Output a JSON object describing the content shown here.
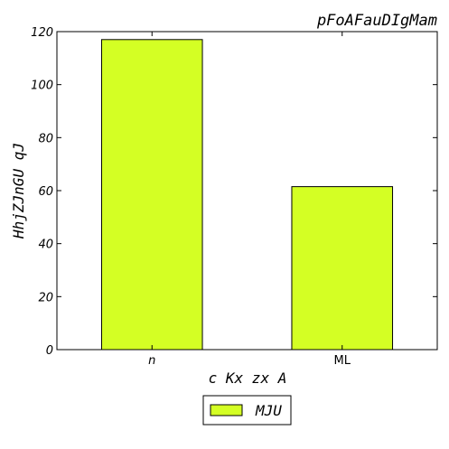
{
  "chart_data": {
    "type": "bar",
    "title": "pFoAFauDIgMam",
    "xlabel": "c Kx zx A",
    "ylabel": "HhjZJnGU qJ",
    "categories": [
      "n",
      "ML"
    ],
    "series": [
      {
        "name": "MJU",
        "values": [
          117,
          61.5
        ],
        "color": "#d4ff24"
      }
    ],
    "ylim": [
      0,
      120
    ],
    "yticks": [
      "0",
      "20",
      "40",
      "60",
      "80",
      "100",
      "120"
    ],
    "grid": false,
    "legend": "bottom-center"
  }
}
